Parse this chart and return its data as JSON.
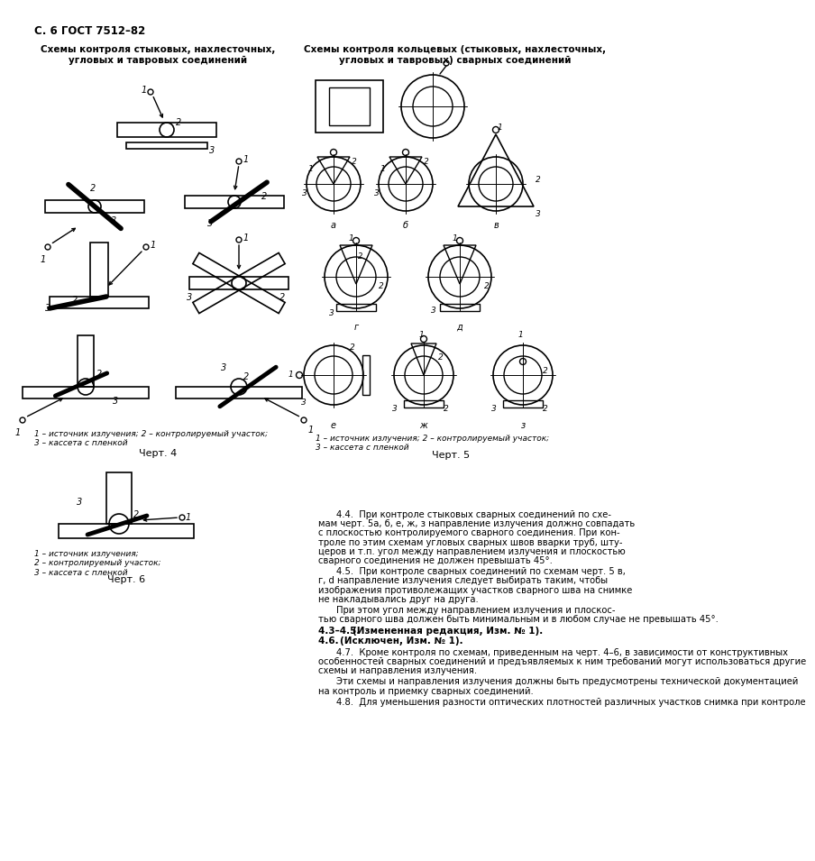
{
  "page_header": "С. 6 ГОСТ 7512–82",
  "left_title_line1": "Схемы контроля стыковых, нахлесточных,",
  "left_title_line2": "угловых и тавровых соединений",
  "right_title_line1": "Схемы контроля кольцевых (стыковых, нахлесточных,",
  "right_title_line2": "угловых и тавровых) сварных соединений",
  "chart4_label": "Черт. 4",
  "chart5_label": "Черт. 5",
  "chart6_label": "Черт. 6",
  "legend_left": "1 – источник излучения; 2 – контролируемый участок;\n3 – кассета с пленкой",
  "legend_left2": "1 – источник излучения;\n2 – контролируемый участок;\n3 – кассета с пленкой",
  "para44_title": "4.4.",
  "para44_body": " При контроле стыковых сварных соединений по схе-",
  "para44_lines": [
    "мам черт. 5а, б, е, ж, з направление излучения должно совпадать",
    "с плоскостью контролируемого сварного соединения. При кон-",
    "троле по этим схемам угловых сварных швов вварки труб, шту-",
    "церов и т.п. угол между направлением излучения и плоскостью",
    "сварного соединения не должен превышать 45°."
  ],
  "para45_title": "4.5.",
  "para45_body": " При контроле сварных соединений по схемам черт. 5 в,",
  "para45_lines": [
    "г, d направление излучения следует выбирать таким, чтобы",
    "изображения противолежащих участков сварного шва на снимке",
    "не накладывались друг на друга."
  ],
  "para45b_lines": [
    "При этом угол между направлением излучения и плоскос-",
    "тью сварного шва должен быть минимальным и в любом случае не превышать 45°."
  ],
  "para43_45": "4.3–4.5.  (Измененная редакция, Изм. № 1).",
  "para46": "4.6.  (Исключен, Изм. № 1).",
  "para47_title": "4.7.",
  "para47_body": " Кроме контроля по схемам, приведенным на черт. 4–6, в зависимости от конструктивных",
  "para47_lines": [
    "особенностей сварных соединений и предъявляемых к ним требований могут использоваться другие",
    "схемы и направления излучения."
  ],
  "para47b_lines": [
    "Эти схемы и направления излучения должны быть предусмотрены технической документацией",
    "на контроль и приемку сварных соединений."
  ],
  "para48_title": "4.8.",
  "para48_body": " Для уменьшения разности оптических плотностей различных участков снимка при контроле"
}
